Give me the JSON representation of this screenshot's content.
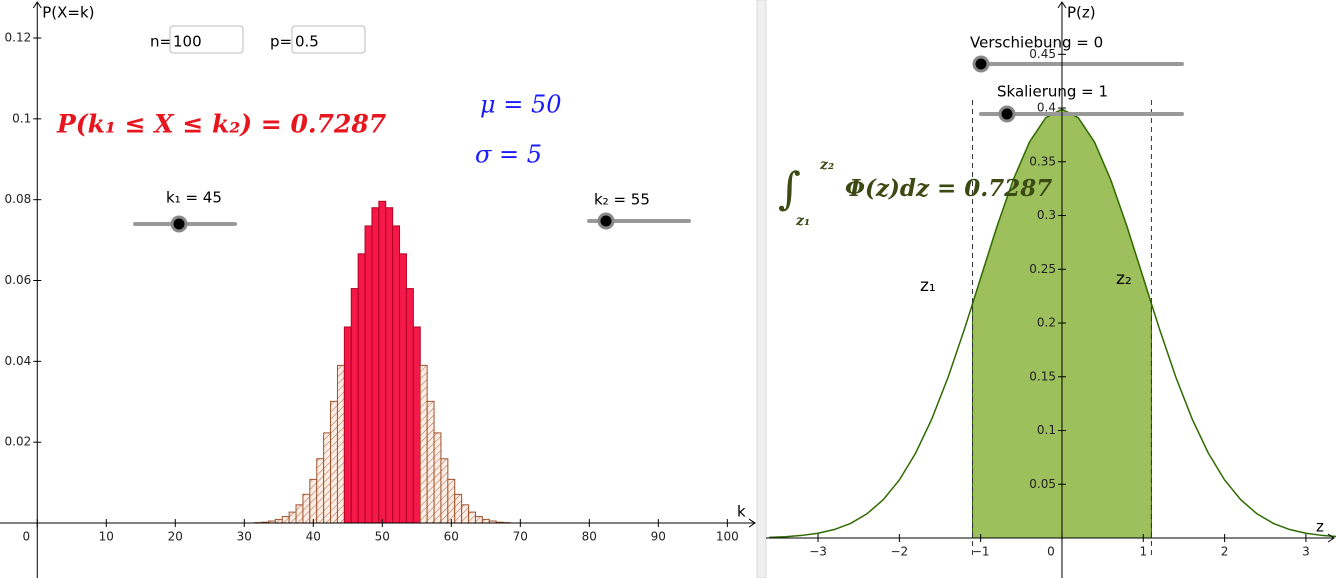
{
  "chart_data": [
    {
      "type": "bar",
      "y_label": "P(X=k)",
      "x_label": "k",
      "x": [
        32,
        33,
        34,
        35,
        36,
        37,
        38,
        39,
        40,
        41,
        42,
        43,
        44,
        45,
        46,
        47,
        48,
        49,
        50,
        51,
        52,
        53,
        54,
        55,
        56,
        57,
        58,
        59,
        60,
        61,
        62,
        63,
        64,
        65,
        66,
        67,
        68
      ],
      "values": [
        0.0001,
        0.0002,
        0.0005,
        0.0009,
        0.0016,
        0.0027,
        0.0045,
        0.0071,
        0.0108,
        0.0159,
        0.0223,
        0.0301,
        0.039,
        0.0485,
        0.058,
        0.0666,
        0.0735,
        0.078,
        0.0796,
        0.078,
        0.0735,
        0.0666,
        0.058,
        0.0485,
        0.039,
        0.0301,
        0.0223,
        0.0159,
        0.0108,
        0.0071,
        0.0045,
        0.0027,
        0.0016,
        0.0009,
        0.0005,
        0.0002,
        0.0001
      ],
      "color": "#f7e3d6",
      "edge_color": "#a0522d",
      "highlight_color": "#f5194b",
      "highlight_edge": "#b3001e",
      "xlim": [
        -5.4,
        104.3
      ],
      "ylim": [
        -0.0136,
        0.1294
      ],
      "xticks": [
        0,
        10,
        20,
        30,
        40,
        50,
        60,
        70,
        80,
        90,
        100
      ],
      "yticks": [
        0.02,
        0.04,
        0.06,
        0.08,
        0.1,
        0.12
      ],
      "inputs": [
        {
          "label": "n=",
          "value": "100"
        },
        {
          "label": "p=",
          "value": "0.5"
        }
      ],
      "sliders": [
        {
          "label": "k₁ = 45",
          "value": 45
        },
        {
          "label": "k₂ = 55",
          "value": 55
        }
      ],
      "formula": "P(k₁ ≤ X ≤ k₂) = 0.7287",
      "mu": "μ = 50",
      "sigma": "σ = 5"
    },
    {
      "type": "area",
      "y_label": "P(z)",
      "x_label": "z",
      "x": [
        -3.6,
        -3.4,
        -3.2,
        -3.0,
        -2.8,
        -2.6,
        -2.4,
        -2.2,
        -2.0,
        -1.8,
        -1.6,
        -1.4,
        -1.2,
        -1.1,
        -1.0,
        -0.8,
        -0.6,
        -0.4,
        -0.2,
        0,
        0.2,
        0.4,
        0.6,
        0.8,
        1.0,
        1.1,
        1.2,
        1.4,
        1.6,
        1.8,
        2.0,
        2.2,
        2.4,
        2.6,
        2.8,
        3.0,
        3.2,
        3.4
      ],
      "values": [
        0.0006,
        0.0012,
        0.0024,
        0.0044,
        0.0079,
        0.0136,
        0.0224,
        0.0355,
        0.054,
        0.079,
        0.1109,
        0.1497,
        0.1942,
        0.2179,
        0.242,
        0.2897,
        0.3332,
        0.3683,
        0.391,
        0.3989,
        0.391,
        0.3683,
        0.3332,
        0.2897,
        0.242,
        0.2179,
        0.1942,
        0.1497,
        0.1109,
        0.079,
        0.054,
        0.0355,
        0.0224,
        0.0136,
        0.0079,
        0.0044,
        0.0024,
        0.0012
      ],
      "color": "#2e6b00",
      "fill": "#9dbf5c",
      "bounds": [
        -1.1,
        1.1
      ],
      "xlim": [
        -3.64,
        3.37
      ],
      "ylim": [
        -0.0372,
        0.5005
      ],
      "xticks": [
        {
          "value": -3,
          "label": "−3"
        },
        {
          "value": -2,
          "label": "−2"
        },
        {
          "value": -1,
          "label": "−1"
        },
        0,
        1,
        2,
        3
      ],
      "yticks": [
        0.05,
        0.1,
        0.15,
        0.2,
        0.25,
        0.3,
        0.35,
        0.4,
        0.45
      ],
      "sliders": [
        {
          "label": "Verschiebung = 0",
          "value": 0
        },
        {
          "label": "Skalierung = 1",
          "value": 1
        }
      ],
      "bound_labels": [
        "z₁",
        "z₂"
      ],
      "integral": {
        "symbol": "∫",
        "lower": "z₁",
        "upper": "z₂",
        "body": "Φ(z)dz = 0.7287"
      }
    }
  ]
}
